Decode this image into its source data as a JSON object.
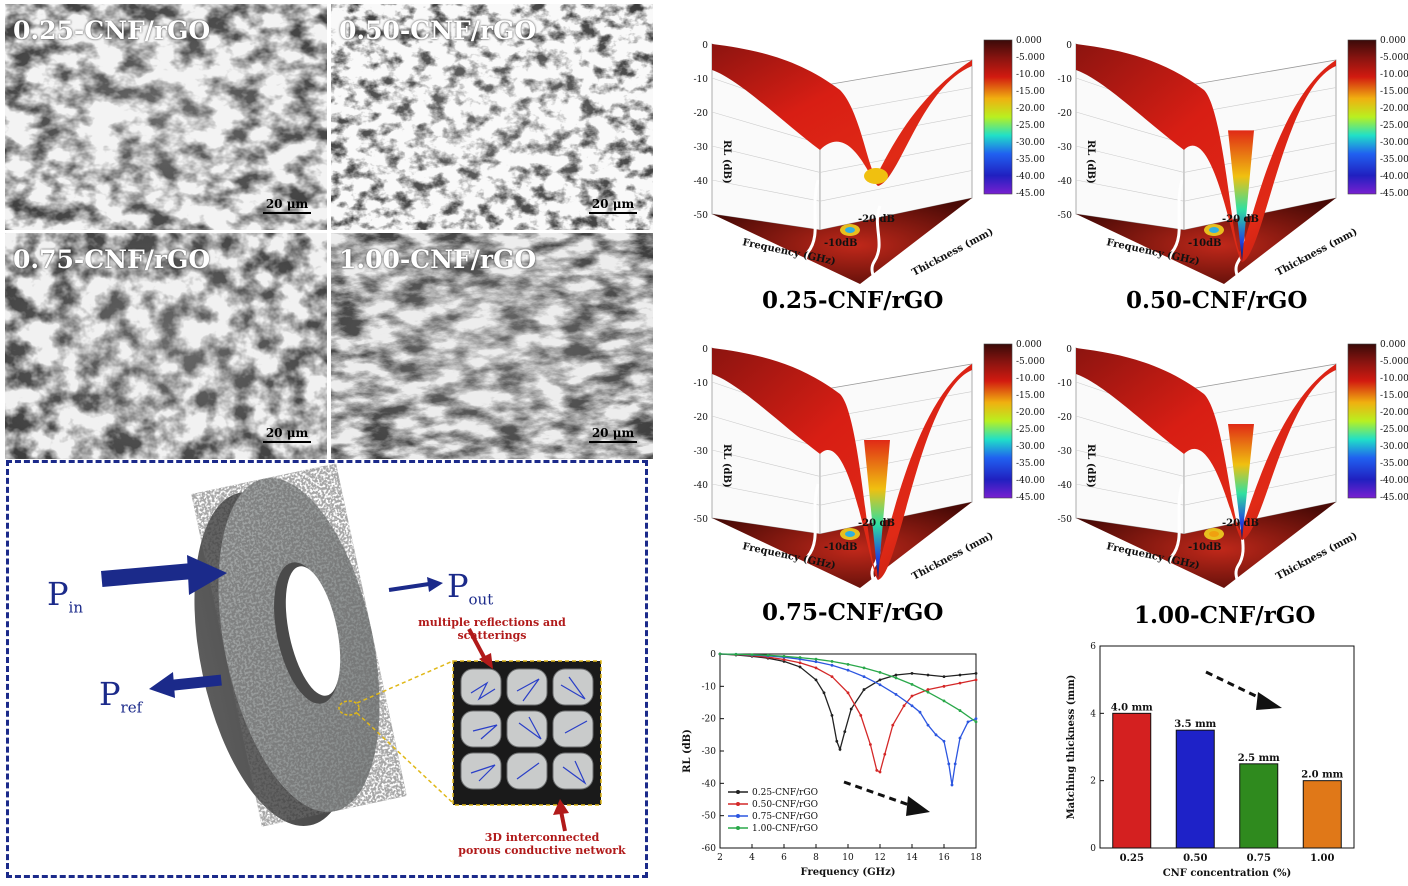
{
  "sem_panels": [
    {
      "label": "0.25-CNF/rGO",
      "scale": "20 μm"
    },
    {
      "label": "0.50-CNF/rGO",
      "scale": "20 μm"
    },
    {
      "label": "0.75-CNF/rGO",
      "scale": "20 μm"
    },
    {
      "label": "1.00-CNF/rGO",
      "scale": "20 μm"
    }
  ],
  "schematic": {
    "p_in": "P",
    "p_in_sub": "in",
    "p_out": "P",
    "p_out_sub": "out",
    "p_ref": "P",
    "p_ref_sub": "ref",
    "top_note": "multiple reflections and scatterings",
    "bottom_note_1": "3D interconnected",
    "bottom_note_2": "porous conductive network",
    "colors": {
      "arrow": "#1b2a8a",
      "note": "#b11a1a",
      "frame": "#1b2a8a"
    }
  },
  "surface_plots": [
    {
      "caption": "0.25-CNF/rGO",
      "contour_a": "-20 dB",
      "contour_b": "-10dB"
    },
    {
      "caption": "0.50-CNF/rGO",
      "contour_a": "-20 dB",
      "contour_b": "-10dB"
    },
    {
      "caption": "0.75-CNF/rGO",
      "contour_a": "-20 dB",
      "contour_b": "-10dB"
    },
    {
      "caption": "1.00-CNF/rGO",
      "contour_a": "-20 dB",
      "contour_b": "-10dB"
    }
  ],
  "surface_axes": {
    "z_label": "RL (dB)",
    "x_label": "Frequency (GHz)",
    "y_label": "Thickness (mm)",
    "z_ticks": [
      "0",
      "-10",
      "-20",
      "-30",
      "-40",
      "-50"
    ]
  },
  "colorbar": {
    "ticks": [
      "0.000",
      "-5.000",
      "-10.00",
      "-15.00",
      "-20.00",
      "-25.00",
      "-30.00",
      "-35.00",
      "-40.00",
      "-45.00"
    ]
  },
  "chart_data": [
    {
      "type": "line",
      "xlabel": "Frequency (GHz)",
      "ylabel": "RL (dB)",
      "xlim": [
        2,
        18
      ],
      "ylim": [
        -60,
        0
      ],
      "xticks": [
        2,
        4,
        6,
        8,
        10,
        12,
        14,
        16,
        18
      ],
      "yticks": [
        0,
        -10,
        -20,
        -30,
        -40,
        -50,
        -60
      ],
      "legend_position": "bottom-left",
      "series": [
        {
          "name": "0.25-CNF/rGO",
          "color": "#222222",
          "x": [
            2,
            3,
            4,
            5,
            6,
            7,
            8,
            8.5,
            9,
            9.3,
            9.5,
            9.8,
            10.2,
            11,
            12,
            13,
            14,
            15,
            16,
            17,
            18
          ],
          "y": [
            0,
            -0.3,
            -0.7,
            -1.3,
            -2.3,
            -4,
            -8,
            -12,
            -19,
            -27,
            -29.5,
            -24,
            -17,
            -11,
            -8,
            -6.5,
            -6,
            -6.5,
            -7,
            -6.5,
            -6
          ]
        },
        {
          "name": "0.50-CNF/rGO",
          "color": "#d42828",
          "x": [
            2,
            3,
            4,
            5,
            6,
            7,
            8,
            9,
            10,
            10.8,
            11.4,
            11.8,
            12,
            12.3,
            12.8,
            13.5,
            14,
            15,
            16,
            17,
            18
          ],
          "y": [
            0,
            -0.2,
            -0.5,
            -1,
            -1.7,
            -2.7,
            -4.3,
            -7,
            -12,
            -19,
            -28,
            -36,
            -36.5,
            -31,
            -22,
            -16,
            -13,
            -11,
            -10,
            -9,
            -8
          ]
        },
        {
          "name": "0.75-CNF/rGO",
          "color": "#2c56e0",
          "x": [
            2,
            3,
            4,
            5,
            6,
            7,
            8,
            9,
            10,
            11,
            12,
            13,
            14,
            14.5,
            15,
            15.5,
            16,
            16.3,
            16.5,
            16.7,
            17,
            17.5,
            18
          ],
          "y": [
            0,
            -0.1,
            -0.3,
            -0.6,
            -1,
            -1.6,
            -2.4,
            -3.5,
            -5,
            -7,
            -9.5,
            -12.5,
            -16,
            -18,
            -22,
            -25,
            -27,
            -34,
            -40.5,
            -34,
            -26,
            -21,
            -20
          ]
        },
        {
          "name": "1.00-CNF/rGO",
          "color": "#2aa84a",
          "x": [
            2,
            3,
            4,
            5,
            6,
            7,
            8,
            9,
            10,
            11,
            12,
            13,
            14,
            15,
            16,
            17,
            18
          ],
          "y": [
            0,
            -0.1,
            -0.2,
            -0.4,
            -0.7,
            -1.1,
            -1.6,
            -2.3,
            -3.2,
            -4.3,
            -5.7,
            -7.4,
            -9.4,
            -11.8,
            -14.5,
            -17.5,
            -21
          ]
        }
      ]
    },
    {
      "type": "bar",
      "xlabel": "CNF concentration (%)",
      "ylabel": "Matching thickness (mm)",
      "ylim": [
        0,
        6
      ],
      "yticks": [
        0,
        2,
        4,
        6
      ],
      "categories": [
        "0.25",
        "0.50",
        "0.75",
        "1.00"
      ],
      "values": [
        4.0,
        3.5,
        2.5,
        2.0
      ],
      "data_labels": [
        "4.0 mm",
        "3.5 mm",
        "2.5 mm",
        "2.0 mm"
      ],
      "bar_colors": [
        "#d42020",
        "#1e22c8",
        "#2f8a1e",
        "#e07818"
      ]
    }
  ]
}
